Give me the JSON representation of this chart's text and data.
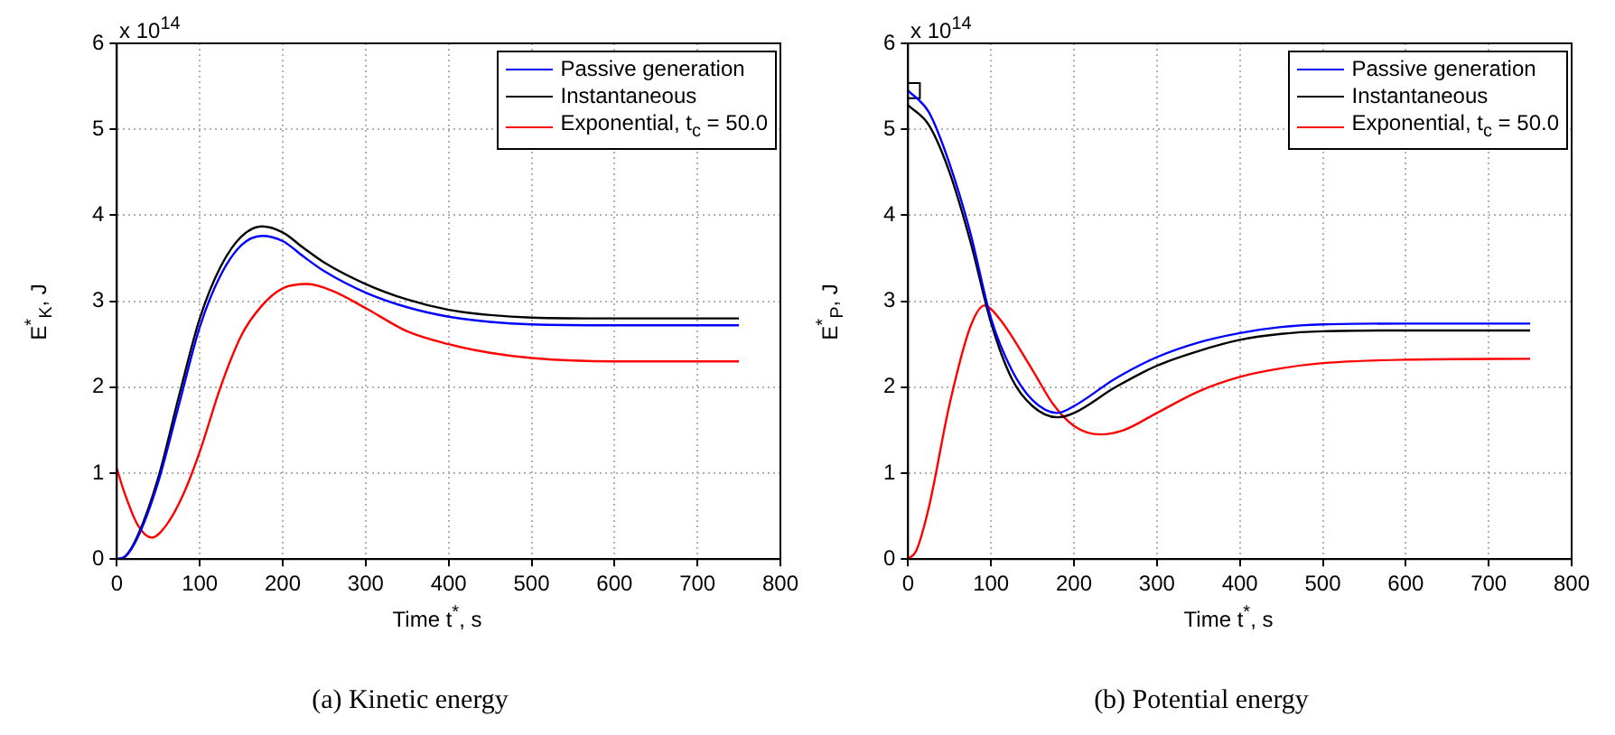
{
  "chart_data": [
    {
      "type": "line",
      "xlabel": "Time t$^{*}$, s",
      "ylabel": "E$^{*}$$_{K}$, J",
      "annotations": [
        "x 10$^{14}$",
        "(a) Kinetic energy"
      ],
      "xlim": [
        0,
        800
      ],
      "xticks": [
        0,
        100,
        200,
        300,
        400,
        500,
        600,
        700,
        800
      ],
      "ylim": [
        0,
        6
      ],
      "yticks": [
        0,
        1,
        2,
        3,
        4,
        5,
        6
      ],
      "grid": true,
      "legend": "top right",
      "marker": "none",
      "line_style": "solid",
      "series": [
        {
          "name": "Passive generation",
          "color": "#0000ff",
          "x": [
            0,
            10,
            25,
            50,
            75,
            100,
            125,
            150,
            175,
            200,
            225,
            250,
            300,
            350,
            400,
            450,
            500,
            600,
            750
          ],
          "values": [
            0,
            0.03,
            0.25,
            0.9,
            1.8,
            2.7,
            3.3,
            3.65,
            3.76,
            3.7,
            3.52,
            3.35,
            3.1,
            2.93,
            2.82,
            2.76,
            2.73,
            2.72,
            2.72
          ]
        },
        {
          "name": "Instantaneous",
          "color": "#000000",
          "x": [
            0,
            10,
            25,
            50,
            75,
            100,
            125,
            150,
            175,
            200,
            225,
            250,
            300,
            350,
            400,
            450,
            500,
            600,
            750
          ],
          "values": [
            0,
            0.03,
            0.27,
            0.95,
            1.9,
            2.8,
            3.4,
            3.75,
            3.87,
            3.8,
            3.62,
            3.45,
            3.2,
            3.02,
            2.9,
            2.84,
            2.81,
            2.8,
            2.8
          ]
        },
        {
          "name": "Exponential, t$_{c}$ = 50.0",
          "color": "#ff0000",
          "x": [
            0,
            10,
            25,
            42,
            60,
            80,
            100,
            125,
            150,
            175,
            200,
            230,
            260,
            300,
            350,
            400,
            450,
            500,
            600,
            750
          ],
          "values": [
            1.05,
            0.75,
            0.4,
            0.25,
            0.4,
            0.75,
            1.25,
            2.0,
            2.6,
            2.95,
            3.15,
            3.2,
            3.12,
            2.92,
            2.65,
            2.5,
            2.4,
            2.34,
            2.3,
            2.3
          ]
        }
      ]
    },
    {
      "type": "line",
      "xlabel": "Time t$^{*}$, s",
      "ylabel": "E$^{*}$$_{P}$, J",
      "annotations": [
        "x 10$^{14}$",
        "(b) Potential energy"
      ],
      "xlim": [
        0,
        800
      ],
      "xticks": [
        0,
        100,
        200,
        300,
        400,
        500,
        600,
        700,
        800
      ],
      "ylim": [
        0,
        6
      ],
      "yticks": [
        0,
        1,
        2,
        3,
        4,
        5,
        6
      ],
      "grid": true,
      "legend": "top right",
      "marker": "none",
      "line_style": "solid",
      "series": [
        {
          "name": "Passive generation",
          "color": "#0000ff",
          "x": [
            0,
            25,
            50,
            75,
            100,
            125,
            150,
            180,
            200,
            250,
            300,
            350,
            400,
            450,
            500,
            600,
            750
          ],
          "values": [
            5.45,
            5.2,
            4.6,
            3.8,
            2.8,
            2.2,
            1.85,
            1.7,
            1.78,
            2.1,
            2.35,
            2.52,
            2.63,
            2.7,
            2.73,
            2.74,
            2.74
          ]
        },
        {
          "name": "Instantaneous",
          "color": "#000000",
          "x": [
            0,
            25,
            50,
            75,
            100,
            125,
            150,
            180,
            200,
            250,
            300,
            350,
            400,
            450,
            500,
            600,
            750
          ],
          "values": [
            5.28,
            5.05,
            4.5,
            3.7,
            2.75,
            2.1,
            1.78,
            1.65,
            1.7,
            2.0,
            2.25,
            2.42,
            2.55,
            2.62,
            2.65,
            2.66,
            2.66
          ]
        },
        {
          "name": "Exponential, t$_{c}$ = 50.0",
          "color": "#ff0000",
          "x": [
            0,
            10,
            25,
            50,
            75,
            92,
            110,
            150,
            175,
            200,
            232,
            260,
            300,
            350,
            400,
            450,
            500,
            600,
            750
          ],
          "values": [
            0,
            0.1,
            0.6,
            1.8,
            2.7,
            2.95,
            2.8,
            2.2,
            1.8,
            1.55,
            1.45,
            1.5,
            1.7,
            1.95,
            2.12,
            2.22,
            2.28,
            2.32,
            2.33
          ]
        },
        {
          "type": "scatter",
          "marker": "square",
          "color": "#000000",
          "x": [
            5
          ],
          "values": [
            5.45
          ]
        }
      ]
    }
  ]
}
